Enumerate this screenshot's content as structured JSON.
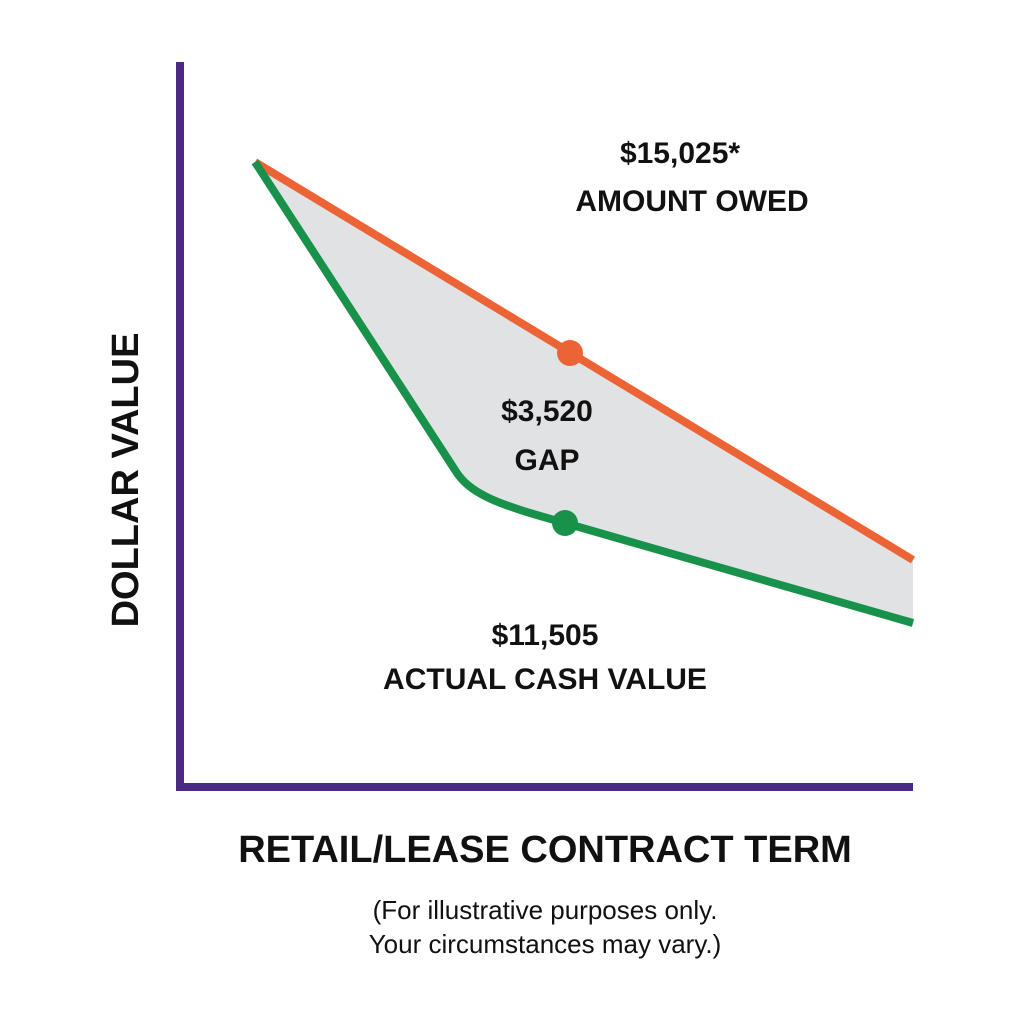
{
  "axis": {
    "y_label": "DOLLAR VALUE",
    "x_label": "RETAIL/LEASE CONTRACT TERM"
  },
  "labels": {
    "amount_owed": {
      "amount": "$15,025*",
      "text": "AMOUNT OWED"
    },
    "gap": {
      "amount": "$3,520",
      "text": "GAP"
    },
    "actual_cash_value": {
      "amount": "$11,505",
      "text": "ACTUAL CASH VALUE"
    }
  },
  "note": [
    "(For illustrative purposes only.",
    "Your circumstances may vary.)"
  ]
}
